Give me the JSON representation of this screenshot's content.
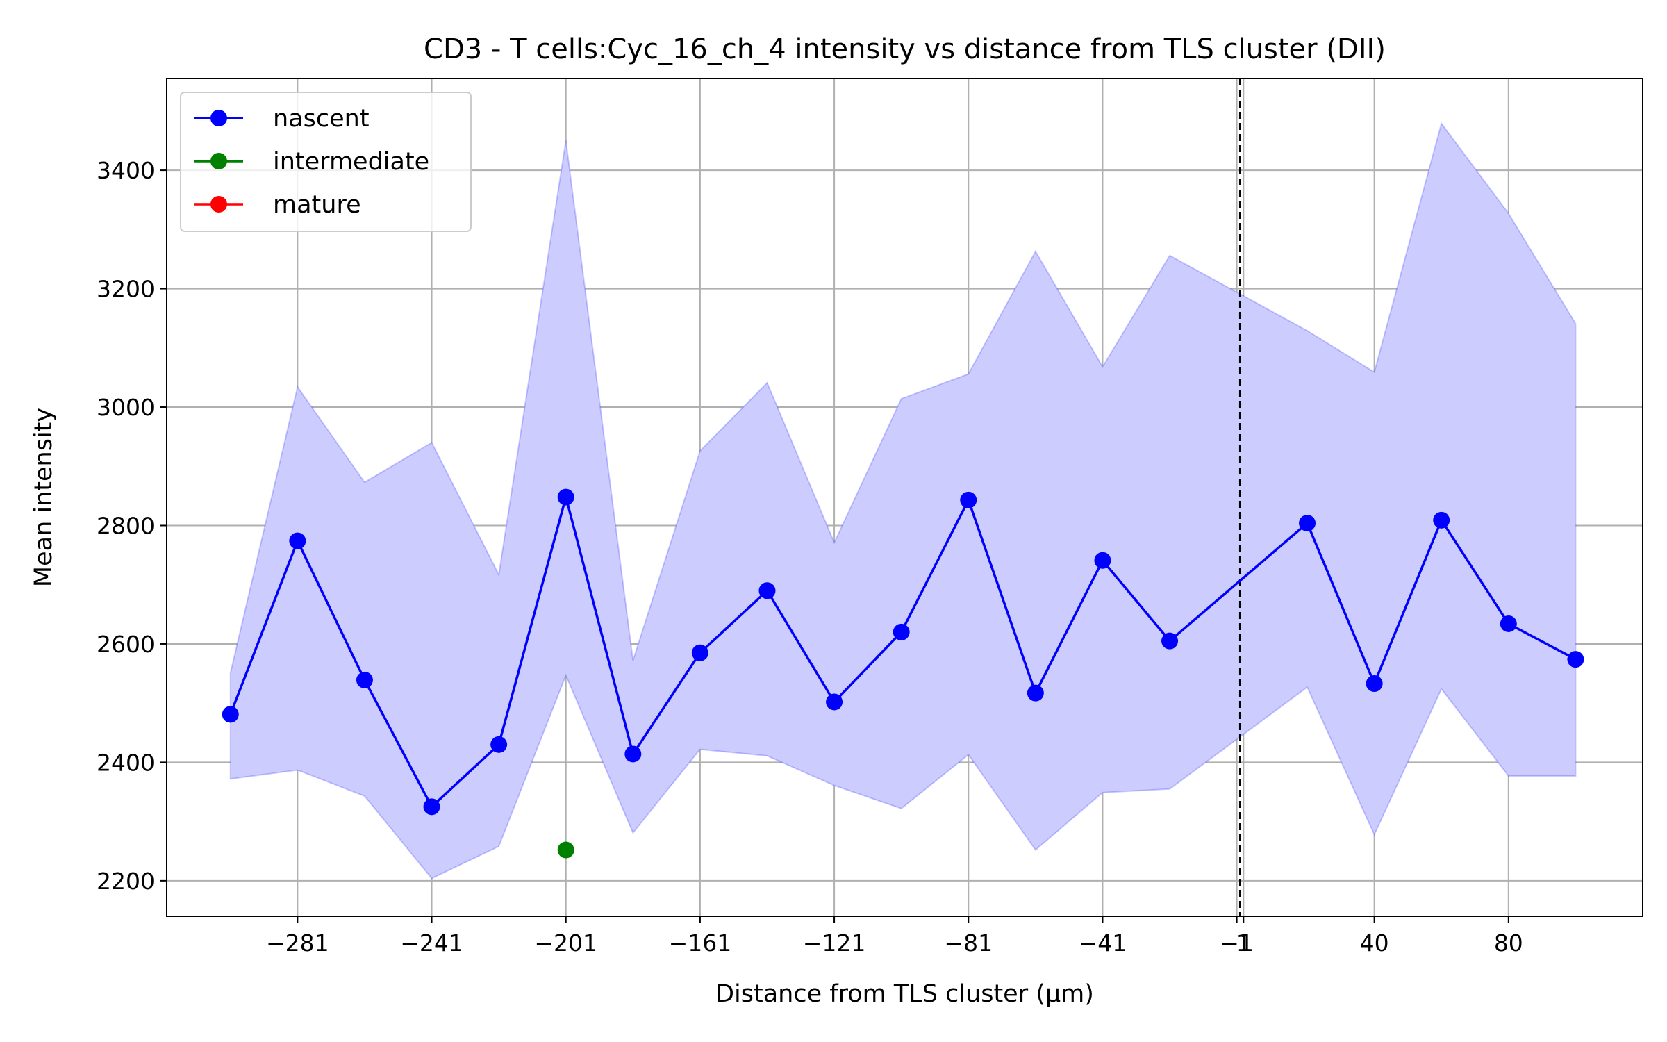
{
  "chart_data": {
    "type": "line",
    "title": "CD3 - T cells:Cyc_16_ch_4 intensity vs distance from TLS cluster (DII)",
    "xlabel": "Distance from TLS cluster (μm)",
    "ylabel": "Mean intensity",
    "xlim": [
      -320,
      120
    ],
    "ylim": [
      2140,
      3555
    ],
    "grid": true,
    "legend_position": "top-left",
    "x_ticks": [
      -281,
      -241,
      -201,
      -161,
      -121,
      -81,
      -41,
      -1,
      1,
      40,
      80
    ],
    "x_tick_labels": [
      "−281",
      "−241",
      "−201",
      "−161",
      "−121",
      "−81",
      "−41",
      "−1",
      "1",
      "40",
      "80"
    ],
    "y_ticks": [
      2200,
      2400,
      2600,
      2800,
      3000,
      3200,
      3400
    ],
    "y_tick_labels": [
      "2200",
      "2400",
      "2600",
      "2800",
      "3000",
      "3200",
      "3400"
    ],
    "vline_x": 0,
    "series": [
      {
        "name": "nascent",
        "color": "#0000ff",
        "band_color": "#ccccff",
        "points": [
          {
            "x": -301,
            "y": 2481,
            "lo": 2372,
            "hi": 2551
          },
          {
            "x": -281,
            "y": 2774,
            "lo": 2387,
            "hi": 3034
          },
          {
            "x": -261,
            "y": 2539,
            "lo": 2343,
            "hi": 2873
          },
          {
            "x": -241,
            "y": 2325,
            "lo": 2204,
            "hi": 2940
          },
          {
            "x": -221,
            "y": 2430,
            "lo": 2258,
            "hi": 2717
          },
          {
            "x": -201,
            "y": 2848,
            "lo": 2547,
            "hi": 3450
          },
          {
            "x": -181,
            "y": 2414,
            "lo": 2281,
            "hi": 2572
          },
          {
            "x": -161,
            "y": 2585,
            "lo": 2422,
            "hi": 2926
          },
          {
            "x": -141,
            "y": 2690,
            "lo": 2411,
            "hi": 3041
          },
          {
            "x": -121,
            "y": 2502,
            "lo": 2361,
            "hi": 2771
          },
          {
            "x": -101,
            "y": 2620,
            "lo": 2322,
            "hi": 3014
          },
          {
            "x": -81,
            "y": 2843,
            "lo": 2413,
            "hi": 3056
          },
          {
            "x": -61,
            "y": 2517,
            "lo": 2252,
            "hi": 3263
          },
          {
            "x": -41,
            "y": 2741,
            "lo": 2349,
            "hi": 3068
          },
          {
            "x": -21,
            "y": 2605,
            "lo": 2355,
            "hi": 3256
          },
          {
            "x": 20,
            "y": 2804,
            "lo": 2527,
            "hi": 3129
          },
          {
            "x": 40,
            "y": 2533,
            "lo": 2278,
            "hi": 3059
          },
          {
            "x": 60,
            "y": 2809,
            "lo": 2524,
            "hi": 3479
          },
          {
            "x": 80,
            "y": 2634,
            "lo": 2377,
            "hi": 3327
          },
          {
            "x": 100,
            "y": 2574,
            "lo": 2377,
            "hi": 3141
          }
        ]
      },
      {
        "name": "intermediate",
        "color": "#008000",
        "points": [
          {
            "x": -201,
            "y": 2252
          }
        ]
      },
      {
        "name": "mature",
        "color": "#ff0000",
        "points": []
      }
    ]
  }
}
